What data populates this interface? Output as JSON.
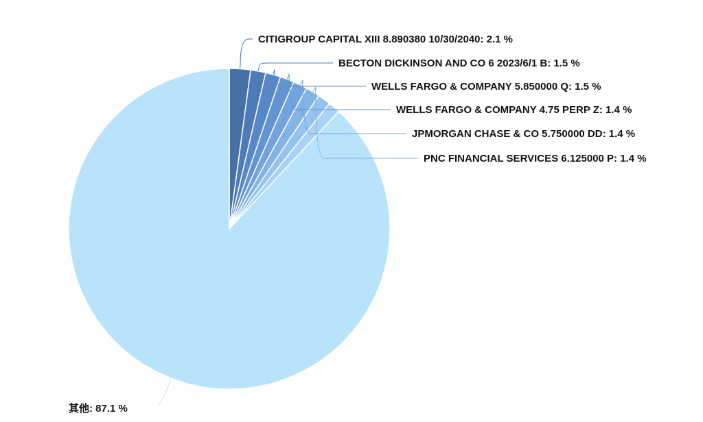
{
  "chart_data": {
    "type": "pie",
    "title": "",
    "slices": [
      {
        "label": "CITIGROUP CAPITAL XIII 8.890380 10/30/2040",
        "value": 2.1,
        "display": "CITIGROUP CAPITAL XIII 8.890380 10/30/2040: 2.1 %",
        "color": "#4670a6"
      },
      {
        "label": "BECTON DICKINSON AND CO 6 2023/6/1 B",
        "value": 1.5,
        "display": "BECTON DICKINSON AND CO 6 2023/6/1 B: 1.5 %",
        "color": "#4d7ab8"
      },
      {
        "label": "WELLS FARGO & COMPANY 5.850000 Q",
        "value": 1.5,
        "display": "WELLS FARGO & COMPANY 5.850000 Q: 1.5 %",
        "color": "#5887c7"
      },
      {
        "label": "WELLS FARGO & COMPANY 4.75 PERP Z",
        "value": 1.4,
        "display": "WELLS FARGO & COMPANY 4.75 PERP Z: 1.4 %",
        "color": "#6394d2"
      },
      {
        "label": "JPMORGAN CHASE & CO 5.750000 DD",
        "value": 1.4,
        "display": "JPMORGAN CHASE & CO 5.750000 DD: 1.4 %",
        "color": "#72a3dd"
      },
      {
        "label": "PNC FINANCIAL SERVICES 6.125000 P",
        "value": 1.4,
        "display": "PNC FINANCIAL SERVICES 6.125000 P: 1.4 %",
        "color": "#82b2e6"
      },
      {
        "label": "",
        "value": 1.3,
        "display": "",
        "color": "#95c3f0"
      },
      {
        "label": "",
        "value": 1.2,
        "display": "",
        "color": "#a8d2f6"
      },
      {
        "label": "其他",
        "value": 87.1,
        "display": "其他: 87.1 %",
        "color": "#b9e2fb"
      }
    ],
    "legend": "none",
    "label_placement": "outside-with-leader-lines"
  }
}
